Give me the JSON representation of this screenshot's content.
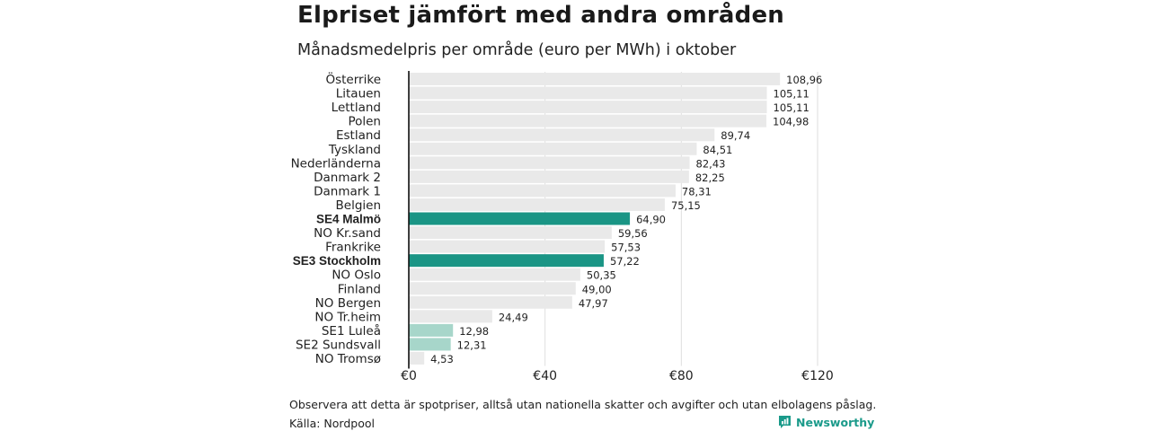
{
  "header": {
    "title": "Elpriset jämfört med andra områden",
    "subtitle": "Månadsmedelpris per område (euro per MWh) i oktober"
  },
  "footer": {
    "note": "Observera att detta är spotpriser, alltså utan nationella skatter och avgifter och utan elbolagens påslag.",
    "source": "Källa: Nordpool",
    "brand": "Newsworthy",
    "brand_icon": "bar-chart-icon"
  },
  "colors": {
    "default_bar": "#e9e9e9",
    "highlight_bar": "#1a9585",
    "light_highlight_bar": "#a7d6ca",
    "brand": "#1a9a8a"
  },
  "chart_data": {
    "type": "bar",
    "orientation": "horizontal",
    "title": "Elpriset jämfört med andra områden",
    "subtitle": "Månadsmedelpris per område (euro per MWh) i oktober",
    "xlim": [
      0,
      120
    ],
    "xticks": [
      0,
      40,
      80,
      120
    ],
    "xtick_labels": [
      "€0",
      "€40",
      "€80",
      "€120"
    ],
    "grid": true,
    "categories": [
      "Österrike",
      "Litauen",
      "Lettland",
      "Polen",
      "Estland",
      "Tyskland",
      "Nederländerna",
      "Danmark  2",
      "Danmark  1",
      "Belgien",
      "SE4 Malmö",
      "NO Kr.sand",
      "Frankrike",
      "SE3 Stockholm",
      "NO Oslo",
      "Finland",
      "NO Bergen",
      "NO Tr.heim",
      "SE1  Luleå",
      "SE2  Sundsvall",
      "NO Tromsø"
    ],
    "values": [
      108.96,
      105.11,
      105.11,
      104.98,
      89.74,
      84.51,
      82.43,
      82.25,
      78.31,
      75.15,
      64.9,
      59.56,
      57.53,
      57.22,
      50.35,
      49.0,
      47.97,
      24.49,
      12.98,
      12.31,
      4.53
    ],
    "value_labels": [
      "108,96",
      "105,11",
      "105,11",
      "104,98",
      "89,74",
      "84,51",
      "82,43",
      "82,25",
      "78,31",
      "75,15",
      "64,90",
      "59,56",
      "57,53",
      "57,22",
      "50,35",
      "49,00",
      "47,97",
      "24,49",
      "12,98",
      "12,31",
      "4,53"
    ],
    "highlight": [
      "none",
      "none",
      "none",
      "none",
      "none",
      "none",
      "none",
      "none",
      "none",
      "none",
      "strong",
      "none",
      "none",
      "strong",
      "none",
      "none",
      "none",
      "none",
      "light",
      "light",
      "none"
    ]
  }
}
